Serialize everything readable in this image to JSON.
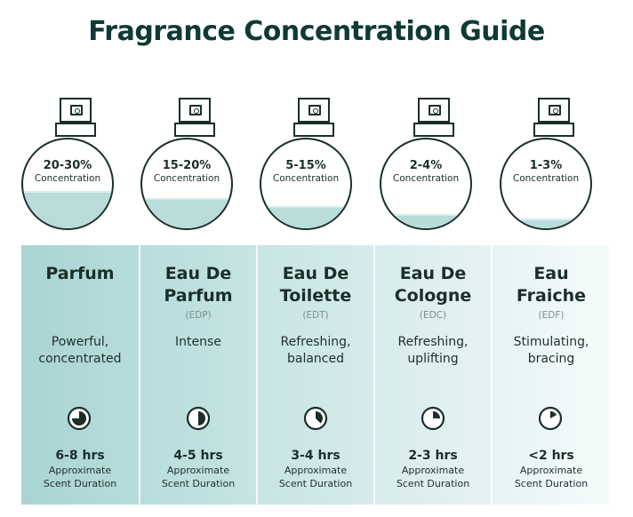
{
  "title": "Fragrance Concentration Guide",
  "concentration_label": "Concentration",
  "duration_label_line1": "Approximate",
  "duration_label_line2": "Scent Duration",
  "colors": {
    "liquid": "#b9dcdb",
    "column_start": "#a9d4d4",
    "column_end": "#f5fbfb",
    "title": "#0f3a33"
  },
  "fragrances": [
    {
      "percent": "20-30%",
      "name_line1": "Parfum",
      "name_line2": "",
      "abbr": "",
      "desc_line1": "Powerful,",
      "desc_line2": "concentrated",
      "duration": "6-8 hrs",
      "fill_fraction": 0.42,
      "clock_fraction": 0.75
    },
    {
      "percent": "15-20%",
      "name_line1": "Eau De",
      "name_line2": "Parfum",
      "abbr": "(EDP)",
      "desc_line1": "Intense",
      "desc_line2": "",
      "duration": "4-5 hrs",
      "fill_fraction": 0.34,
      "clock_fraction": 0.5
    },
    {
      "percent": "5-15%",
      "name_line1": "Eau De",
      "name_line2": "Toilette",
      "abbr": "(EDT)",
      "desc_line1": "Refreshing,",
      "desc_line2": "balanced",
      "duration": "3-4 hrs",
      "fill_fraction": 0.25,
      "clock_fraction": 0.375
    },
    {
      "percent": "2-4%",
      "name_line1": "Eau De",
      "name_line2": "Cologne",
      "abbr": "(EDC)",
      "desc_line1": "Refreshing,",
      "desc_line2": "uplifting",
      "duration": "2-3 hrs",
      "fill_fraction": 0.16,
      "clock_fraction": 0.25
    },
    {
      "percent": "1-3%",
      "name_line1": "Eau",
      "name_line2": "Fraiche",
      "abbr": "(EDF)",
      "desc_line1": "Stimulating,",
      "desc_line2": "bracing",
      "duration": "<2 hrs",
      "fill_fraction": 0.11,
      "clock_fraction": 0.17
    }
  ]
}
